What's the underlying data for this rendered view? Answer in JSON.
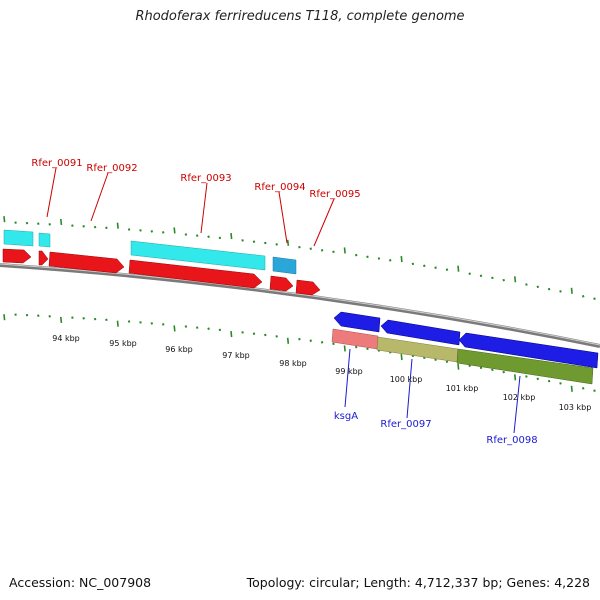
{
  "title": "Rhodoferax ferrireducens T118, complete genome",
  "footer": {
    "accession": "Accession: NC_007908",
    "summary": "Topology: circular; Length: 4,712,337 bp; Genes: 4,228"
  },
  "colors": {
    "cds_forward": "#e8151a",
    "cds_reverse": "#1d1de6",
    "gene_forward": "#33e8ea",
    "gene_reverse": "#2ba6d8",
    "rna_like_pink": "#ee7b7b",
    "khaki": "#b8b86a",
    "olive": "#6f9a2f",
    "tick_green": "#2a8a2a",
    "backbone": "#7a7a7a",
    "label_red": "#cc0000",
    "label_blue": "#1a1ad0"
  },
  "scale": {
    "tick_labels": [
      "94 kbp",
      "95 kbp",
      "96 kbp",
      "97 kbp",
      "98 kbp",
      "99 kbp",
      "100 kbp",
      "101 kbp",
      "102 kbp",
      "103 kbp"
    ]
  },
  "top_gene_labels": [
    "Rfer_0091",
    "Rfer_0092",
    "Rfer_0093",
    "Rfer_0094",
    "Rfer_0095"
  ],
  "bottom_gene_labels": [
    "ksgA",
    "Rfer_0097",
    "Rfer_0098"
  ]
}
